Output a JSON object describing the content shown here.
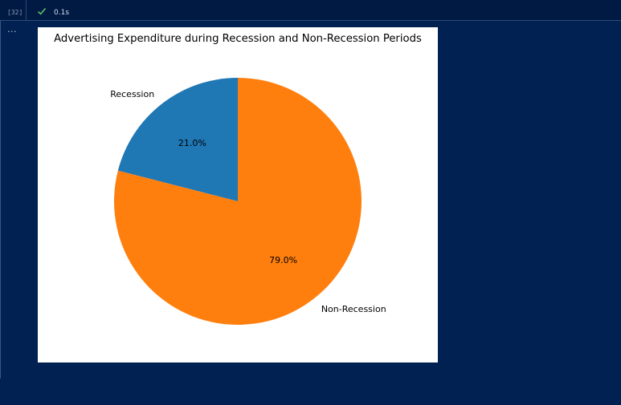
{
  "cell": {
    "execution_count": "[32]",
    "duration": "0.1s",
    "output_ellipsis": "...",
    "status_icon": "check-icon"
  },
  "colors": {
    "background": "#002152",
    "status_ok": "#6ccf6c"
  },
  "chart_data": {
    "type": "pie",
    "title": "Advertising Expenditure during Recession and Non-Recession Periods",
    "labels": [
      "Recession",
      "Non-Recession"
    ],
    "values": [
      21.0,
      79.0
    ],
    "autopct": [
      "21.0%",
      "79.0%"
    ],
    "colors": [
      "#1f77b4",
      "#ff7f0e"
    ],
    "startangle": 90
  }
}
